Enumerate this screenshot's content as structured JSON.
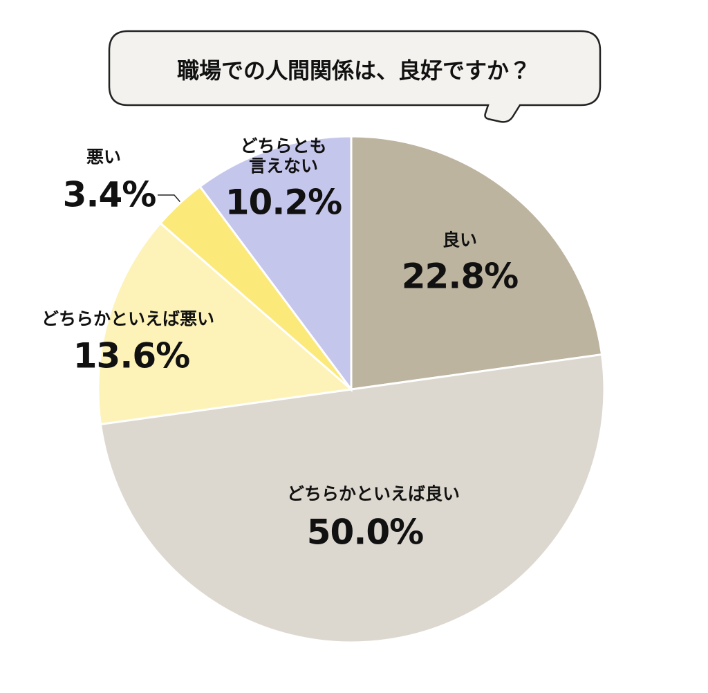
{
  "chart_data": {
    "type": "pie",
    "title": "職場での人間関係は、良好ですか？",
    "categories": [
      "良い",
      "どちらかといえば良い",
      "どちらかといえば悪い",
      "悪い",
      "どちらとも言えない"
    ],
    "values": [
      22.8,
      50.0,
      13.6,
      3.4,
      10.2
    ],
    "value_labels": [
      "22.8%",
      "50.0%",
      "13.6%",
      "3.4%",
      "10.2%"
    ],
    "colors": [
      "#bdb4a0",
      "#ddd8cf",
      "#fdf3b8",
      "#fbe97a",
      "#c5c6ec"
    ]
  }
}
